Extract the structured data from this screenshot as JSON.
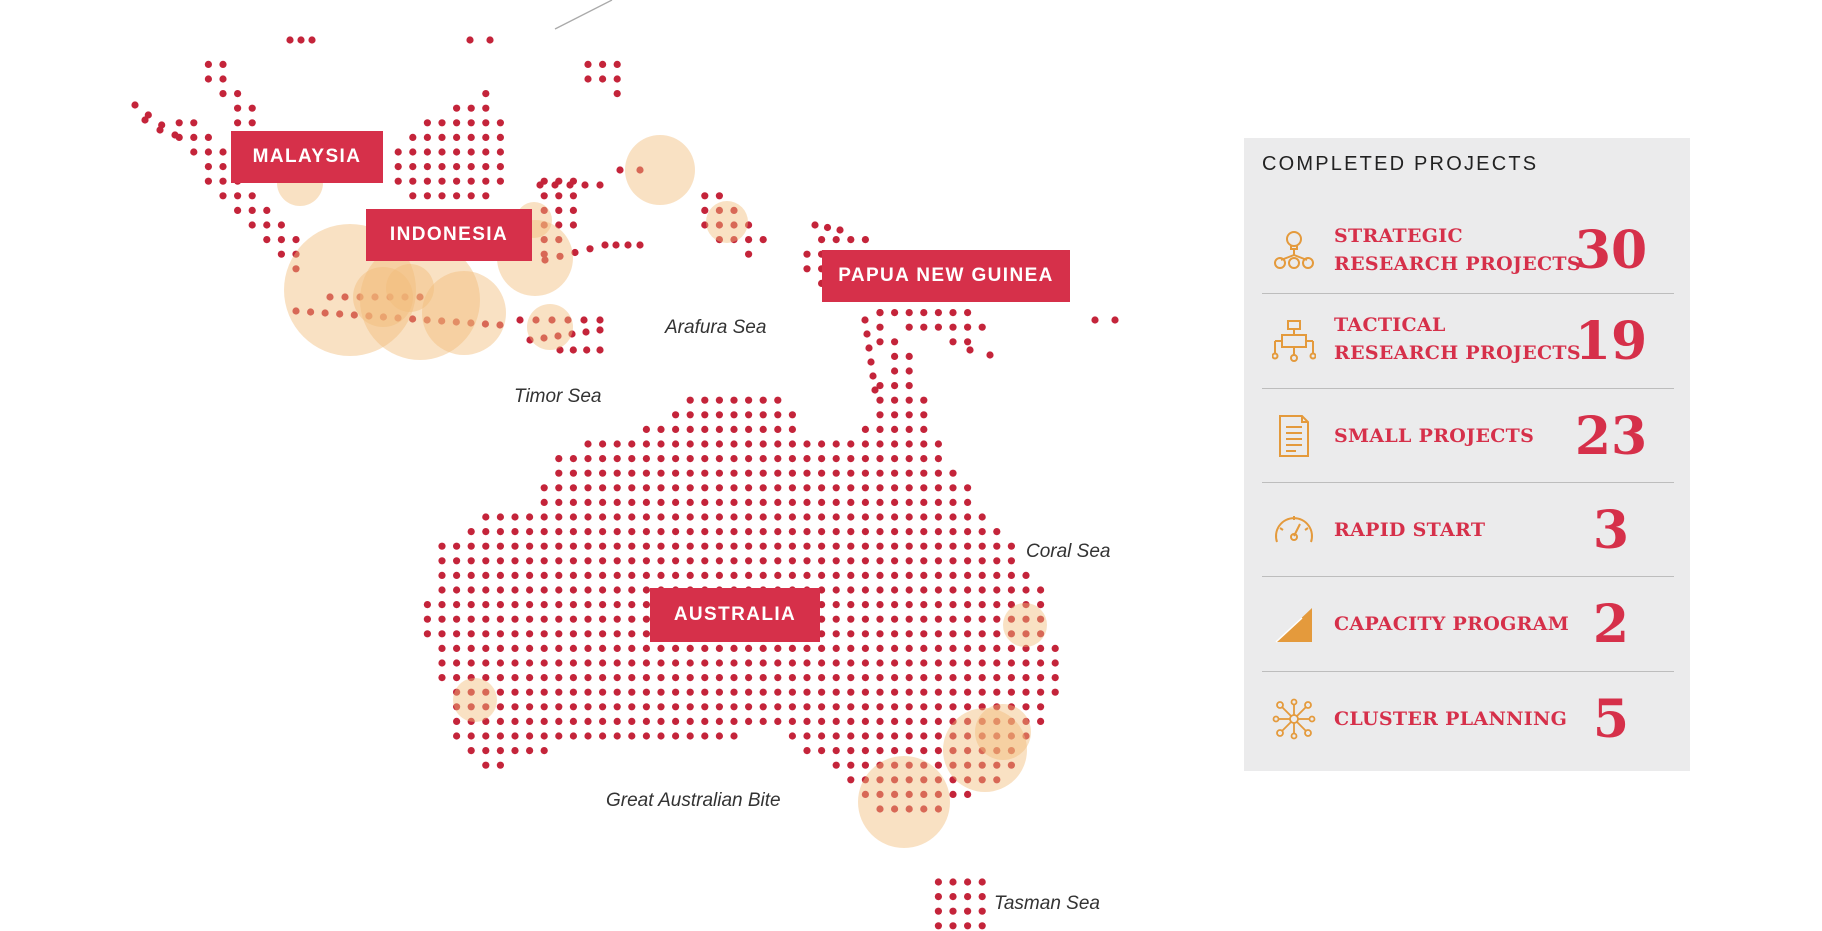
{
  "countries": {
    "malaysia": "MALAYSIA",
    "indonesia": "INDONESIA",
    "png": "PAPUA NEW GUINEA",
    "australia": "AUSTRALIA"
  },
  "seas": {
    "arafura": "Arafura Sea",
    "timor": "Timor Sea",
    "coral": "Coral Sea",
    "great_australian": "Great Australian Bite",
    "tasman": "Tasman Sea"
  },
  "colors": {
    "accent": "#d6304a",
    "dot": "#c4243a",
    "bubble": "#f2bc7a",
    "panel_bg": "#ebebec",
    "icon": "#e49a3c"
  },
  "panel": {
    "title": "COMPLETED PROJECTS",
    "items": [
      {
        "line1": "STRATEGIC",
        "line2": "RESEARCH PROJECTS",
        "count": "30",
        "icon": "lightbulb-network-icon"
      },
      {
        "line1": "TACTICAL",
        "line2": "RESEARCH PROJECTS",
        "count": "19",
        "icon": "flowchart-icon"
      },
      {
        "line1": "SMALL PROJECTS",
        "count": "23",
        "icon": "document-list-icon"
      },
      {
        "line1": "RAPID START",
        "count": "3",
        "icon": "speedometer-icon"
      },
      {
        "line1": "CAPACITY PROGRAM",
        "count": "2",
        "icon": "rising-triangle-icon"
      },
      {
        "line1": "CLUSTER PLANNING",
        "count": "5",
        "icon": "cluster-nodes-icon"
      }
    ]
  }
}
